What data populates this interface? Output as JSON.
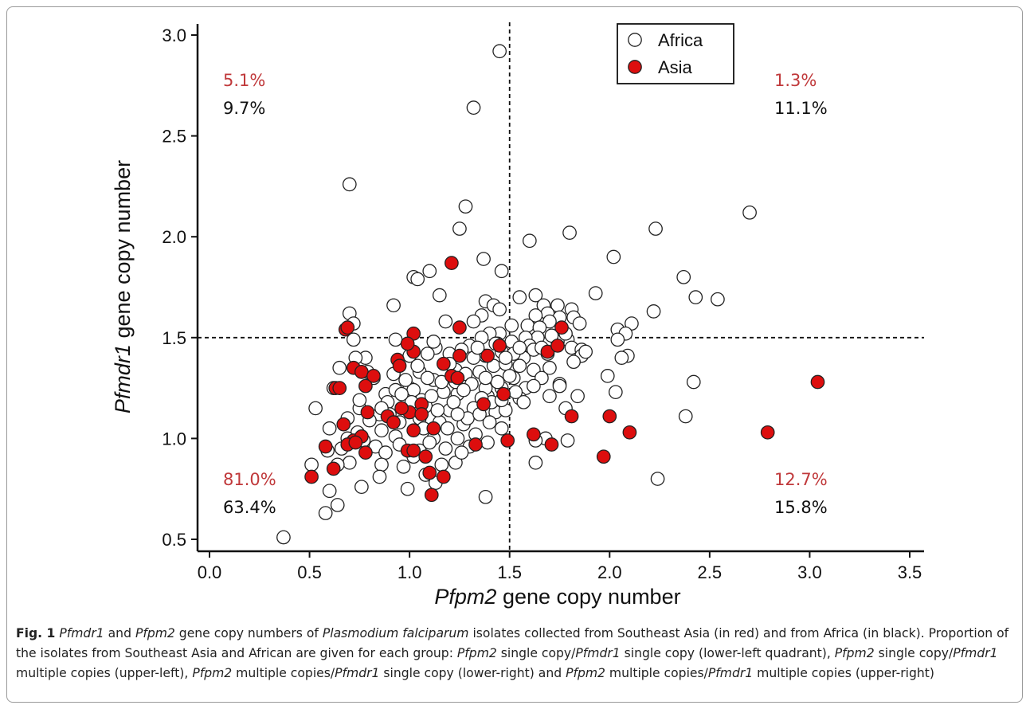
{
  "chart_data": {
    "type": "scatter",
    "xlabel": {
      "italic": "Pfpm2",
      "rest": " gene copy number"
    },
    "ylabel": {
      "italic": "Pfmdr1",
      "rest": " gene copy number"
    },
    "xlim": [
      0.0,
      3.5
    ],
    "ylim": [
      0.5,
      3.0
    ],
    "xticks": [
      "0.0",
      "0.5",
      "1.0",
      "1.5",
      "2.0",
      "2.5",
      "3.0",
      "3.5"
    ],
    "yticks": [
      "0.5",
      "1.0",
      "1.5",
      "2.0",
      "2.5",
      "3.0"
    ],
    "xtick_values": [
      0.0,
      0.5,
      1.0,
      1.5,
      2.0,
      2.5,
      3.0,
      3.5
    ],
    "ytick_values": [
      0.5,
      1.0,
      1.5,
      2.0,
      2.5,
      3.0
    ],
    "threshold_x": 1.5,
    "threshold_y": 1.5,
    "legend_position": "top-center",
    "series": [
      {
        "name": "Africa",
        "fill": "#ffffff",
        "points": [
          [
            1.45,
            2.92
          ],
          [
            1.32,
            2.64
          ],
          [
            0.7,
            2.26
          ],
          [
            1.28,
            2.15
          ],
          [
            2.7,
            2.12
          ],
          [
            1.25,
            2.04
          ],
          [
            2.23,
            2.04
          ],
          [
            1.8,
            2.02
          ],
          [
            1.6,
            1.98
          ],
          [
            2.02,
            1.9
          ],
          [
            1.37,
            1.89
          ],
          [
            1.46,
            1.83
          ],
          [
            1.1,
            1.83
          ],
          [
            1.02,
            1.8
          ],
          [
            1.04,
            1.79
          ],
          [
            2.37,
            1.8
          ],
          [
            1.93,
            1.72
          ],
          [
            1.15,
            1.71
          ],
          [
            1.63,
            1.71
          ],
          [
            2.43,
            1.7
          ],
          [
            2.54,
            1.69
          ],
          [
            1.55,
            1.7
          ],
          [
            1.38,
            1.68
          ],
          [
            1.67,
            1.66
          ],
          [
            1.74,
            1.66
          ],
          [
            0.92,
            1.66
          ],
          [
            1.42,
            1.66
          ],
          [
            1.45,
            1.64
          ],
          [
            1.81,
            1.64
          ],
          [
            2.22,
            1.63
          ],
          [
            0.7,
            1.62
          ],
          [
            1.69,
            1.62
          ],
          [
            1.63,
            1.61
          ],
          [
            1.36,
            1.61
          ],
          [
            1.75,
            1.6
          ],
          [
            1.82,
            1.6
          ],
          [
            1.18,
            1.58
          ],
          [
            1.32,
            1.58
          ],
          [
            2.11,
            1.57
          ],
          [
            0.72,
            1.57
          ],
          [
            1.85,
            1.57
          ],
          [
            1.7,
            1.58
          ],
          [
            1.59,
            1.56
          ],
          [
            1.65,
            1.55
          ],
          [
            2.04,
            1.54
          ],
          [
            2.08,
            1.52
          ],
          [
            1.45,
            1.52
          ],
          [
            1.4,
            1.52
          ],
          [
            1.36,
            1.5
          ],
          [
            1.64,
            1.5
          ],
          [
            1.58,
            1.5
          ],
          [
            0.72,
            1.49
          ],
          [
            0.93,
            1.49
          ],
          [
            1.79,
            1.49
          ],
          [
            2.04,
            1.49
          ],
          [
            1.51,
            1.48
          ],
          [
            1.74,
            1.48
          ],
          [
            1.44,
            1.47
          ],
          [
            1.6,
            1.46
          ],
          [
            1.3,
            1.46
          ],
          [
            1.13,
            1.45
          ],
          [
            1.81,
            1.45
          ],
          [
            1.86,
            1.44
          ],
          [
            1.62,
            1.44
          ],
          [
            1.46,
            1.43
          ],
          [
            1.69,
            1.42
          ],
          [
            1.2,
            1.42
          ],
          [
            1.09,
            1.42
          ],
          [
            1.38,
            1.41
          ],
          [
            1.86,
            1.41
          ],
          [
            2.09,
            1.41
          ],
          [
            2.06,
            1.4
          ],
          [
            1.32,
            1.4
          ],
          [
            1.57,
            1.4
          ],
          [
            0.65,
            1.35
          ],
          [
            0.79,
            1.33
          ],
          [
            0.92,
            1.32
          ],
          [
            1.55,
            1.36
          ],
          [
            1.7,
            1.35
          ],
          [
            1.42,
            1.36
          ],
          [
            1.62,
            1.34
          ],
          [
            1.23,
            1.34
          ],
          [
            1.05,
            1.33
          ],
          [
            1.99,
            1.31
          ],
          [
            1.82,
            1.38
          ],
          [
            1.26,
            1.3
          ],
          [
            1.52,
            1.3
          ],
          [
            1.66,
            1.3
          ],
          [
            1.75,
            1.27
          ],
          [
            1.0,
            1.25
          ],
          [
            0.88,
            1.22
          ],
          [
            0.93,
            1.24
          ],
          [
            1.02,
            1.24
          ],
          [
            1.46,
            1.25
          ],
          [
            1.58,
            1.25
          ],
          [
            2.03,
            1.23
          ],
          [
            1.24,
            1.22
          ],
          [
            1.39,
            1.21
          ],
          [
            1.84,
            1.21
          ],
          [
            0.89,
            1.18
          ],
          [
            1.08,
            1.16
          ],
          [
            1.2,
            1.14
          ],
          [
            1.32,
            1.15
          ],
          [
            1.43,
            1.13
          ],
          [
            1.55,
            1.2
          ],
          [
            1.75,
            1.26
          ],
          [
            0.53,
            1.15
          ],
          [
            0.75,
            1.15
          ],
          [
            0.85,
            1.12
          ],
          [
            1.05,
            1.1
          ],
          [
            1.15,
            1.08
          ],
          [
            1.27,
            1.07
          ],
          [
            1.4,
            1.08
          ],
          [
            1.48,
            1.14
          ],
          [
            1.68,
            1.0
          ],
          [
            2.38,
            1.11
          ],
          [
            0.6,
            1.05
          ],
          [
            0.74,
            1.03
          ],
          [
            0.86,
            1.04
          ],
          [
            0.93,
            1.01
          ],
          [
            1.12,
            1.0
          ],
          [
            1.24,
            1.0
          ],
          [
            1.39,
            0.98
          ],
          [
            1.63,
            0.99
          ],
          [
            1.79,
            0.99
          ],
          [
            0.66,
            0.95
          ],
          [
            0.83,
            0.96
          ],
          [
            0.88,
            0.93
          ],
          [
            1.05,
            0.94
          ],
          [
            1.18,
            0.95
          ],
          [
            1.3,
            0.96
          ],
          [
            0.59,
            0.94
          ],
          [
            0.7,
            0.88
          ],
          [
            0.86,
            0.87
          ],
          [
            0.97,
            0.86
          ],
          [
            1.16,
            0.87
          ],
          [
            1.23,
            0.88
          ],
          [
            1.63,
            0.88
          ],
          [
            0.51,
            0.87
          ],
          [
            0.64,
            0.87
          ],
          [
            0.85,
            0.81
          ],
          [
            0.99,
            0.75
          ],
          [
            1.08,
            0.82
          ],
          [
            1.13,
            0.78
          ],
          [
            0.6,
            0.74
          ],
          [
            0.76,
            0.76
          ],
          [
            1.38,
            0.71
          ],
          [
            0.64,
            0.67
          ],
          [
            0.58,
            0.63
          ],
          [
            2.24,
            0.8
          ],
          [
            0.37,
            0.51
          ],
          [
            2.42,
            1.28
          ],
          [
            1.48,
            1.37
          ],
          [
            1.52,
            1.42
          ],
          [
            1.35,
            1.33
          ],
          [
            1.28,
            1.32
          ],
          [
            1.31,
            1.27
          ],
          [
            1.38,
            1.25
          ],
          [
            1.44,
            1.28
          ],
          [
            1.5,
            1.31
          ],
          [
            1.41,
            1.18
          ],
          [
            1.22,
            1.18
          ],
          [
            1.17,
            1.23
          ],
          [
            1.06,
            1.19
          ],
          [
            1.12,
            1.29
          ],
          [
            0.98,
            1.29
          ],
          [
            1.01,
            1.14
          ],
          [
            0.95,
            1.08
          ],
          [
            0.9,
            1.12
          ],
          [
            1.07,
            1.05
          ],
          [
            1.19,
            1.05
          ],
          [
            1.29,
            1.1
          ],
          [
            1.35,
            1.12
          ],
          [
            1.57,
            1.18
          ],
          [
            1.62,
            1.26
          ],
          [
            1.7,
            1.21
          ],
          [
            1.78,
            1.15
          ],
          [
            1.46,
            1.05
          ],
          [
            1.33,
            1.02
          ],
          [
            1.1,
            0.98
          ],
          [
            0.8,
            1.09
          ],
          [
            0.77,
            0.99
          ],
          [
            0.69,
            1.0
          ],
          [
            0.95,
            0.97
          ],
          [
            1.02,
            0.91
          ],
          [
            1.26,
            0.93
          ],
          [
            1.43,
            1.47
          ],
          [
            1.34,
            1.45
          ],
          [
            1.26,
            1.44
          ],
          [
            1.48,
            1.4
          ],
          [
            1.55,
            1.45
          ],
          [
            1.66,
            1.45
          ],
          [
            0.78,
            1.4
          ],
          [
            0.73,
            1.4
          ],
          [
            0.82,
            1.3
          ],
          [
            1.2,
            1.37
          ],
          [
            1.09,
            1.3
          ],
          [
            1.16,
            1.28
          ],
          [
            1.88,
            1.43
          ],
          [
            1.71,
            1.51
          ],
          [
            1.78,
            1.52
          ],
          [
            1.51,
            1.56
          ],
          [
            1.12,
            1.48
          ],
          [
            1.0,
            1.41
          ],
          [
            1.04,
            1.36
          ],
          [
            1.23,
            1.28
          ],
          [
            1.27,
            1.24
          ],
          [
            1.36,
            1.2
          ],
          [
            1.46,
            1.19
          ],
          [
            1.53,
            1.23
          ],
          [
            1.11,
            1.21
          ],
          [
            1.14,
            1.14
          ],
          [
            1.24,
            1.12
          ],
          [
            1.01,
            1.18
          ],
          [
            0.96,
            1.22
          ],
          [
            0.86,
            1.15
          ],
          [
            0.75,
            1.19
          ],
          [
            0.69,
            1.1
          ],
          [
            0.62,
            1.25
          ],
          [
            1.38,
            1.3
          ]
        ]
      },
      {
        "name": "Asia",
        "fill": "#dd0e0e",
        "points": [
          [
            1.21,
            1.87
          ],
          [
            0.68,
            1.54
          ],
          [
            1.02,
            1.52
          ],
          [
            1.25,
            1.55
          ],
          [
            1.76,
            1.55
          ],
          [
            0.69,
            1.55
          ],
          [
            1.02,
            1.43
          ],
          [
            1.25,
            1.41
          ],
          [
            1.39,
            1.41
          ],
          [
            1.69,
            1.43
          ],
          [
            1.45,
            1.46
          ],
          [
            0.99,
            1.47
          ],
          [
            0.94,
            1.39
          ],
          [
            0.95,
            1.36
          ],
          [
            0.72,
            1.35
          ],
          [
            0.76,
            1.33
          ],
          [
            0.82,
            1.31
          ],
          [
            1.17,
            1.37
          ],
          [
            0.78,
            1.26
          ],
          [
            0.63,
            1.25
          ],
          [
            0.65,
            1.25
          ],
          [
            1.21,
            1.31
          ],
          [
            1.24,
            1.3
          ],
          [
            1.47,
            1.22
          ],
          [
            1.74,
            1.46
          ],
          [
            0.79,
            1.13
          ],
          [
            0.89,
            1.11
          ],
          [
            1.0,
            1.13
          ],
          [
            1.06,
            1.17
          ],
          [
            1.37,
            1.17
          ],
          [
            0.67,
            1.07
          ],
          [
            0.92,
            1.08
          ],
          [
            1.02,
            1.04
          ],
          [
            1.12,
            1.05
          ],
          [
            1.62,
            1.02
          ],
          [
            1.71,
            0.97
          ],
          [
            1.81,
            1.11
          ],
          [
            2.0,
            1.11
          ],
          [
            2.1,
            1.03
          ],
          [
            2.79,
            1.03
          ],
          [
            3.04,
            1.28
          ],
          [
            0.72,
            0.99
          ],
          [
            0.76,
            1.01
          ],
          [
            0.69,
            0.97
          ],
          [
            0.58,
            0.96
          ],
          [
            0.99,
            0.94
          ],
          [
            1.02,
            0.94
          ],
          [
            1.08,
            0.91
          ],
          [
            1.33,
            0.97
          ],
          [
            1.97,
            0.91
          ],
          [
            0.78,
            0.93
          ],
          [
            0.62,
            0.85
          ],
          [
            0.51,
            0.81
          ],
          [
            1.1,
            0.83
          ],
          [
            1.17,
            0.81
          ],
          [
            1.11,
            0.72
          ],
          [
            1.49,
            0.99
          ],
          [
            1.06,
            1.12
          ],
          [
            0.96,
            1.15
          ],
          [
            0.73,
            0.98
          ]
        ]
      }
    ],
    "annotations": [
      {
        "quadrant": "upper-left",
        "asia": "5.1%",
        "africa": "9.7%"
      },
      {
        "quadrant": "upper-right",
        "asia": "1.3%",
        "africa": "11.1%"
      },
      {
        "quadrant": "lower-left",
        "asia": "81.0%",
        "africa": "63.4%"
      },
      {
        "quadrant": "lower-right",
        "asia": "12.7%",
        "africa": "15.8%"
      }
    ],
    "annotation_colors": {
      "asia": "#c0393b",
      "africa": "#111111"
    }
  },
  "caption": {
    "fig": "Fig. 1",
    "parts": [
      {
        "t": "  "
      },
      {
        "t": "Pfmdr1",
        "i": true
      },
      {
        "t": " and "
      },
      {
        "t": "Pfpm2",
        "i": true
      },
      {
        "t": " gene copy numbers of "
      },
      {
        "t": "Plasmodium falciparum",
        "i": true
      },
      {
        "t": " isolates collected from Southeast Asia (in red) and from Africa (in black). Proportion of the isolates from Southeast Asia and African are given for each group: "
      },
      {
        "t": "Pfpm2",
        "i": true
      },
      {
        "t": " single copy/"
      },
      {
        "t": "Pfmdr1",
        "i": true
      },
      {
        "t": " single copy (lower-left quadrant), "
      },
      {
        "t": "Pfpm2",
        "i": true
      },
      {
        "t": " single copy/"
      },
      {
        "t": "Pfmdr1",
        "i": true
      },
      {
        "t": " multiple copies (upper-left), "
      },
      {
        "t": "Pfpm2",
        "i": true
      },
      {
        "t": " multiple copies/"
      },
      {
        "t": "Pfmdr1",
        "i": true
      },
      {
        "t": " single copy (lower-right) and "
      },
      {
        "t": "Pfpm2",
        "i": true
      },
      {
        "t": " multiple copies/"
      },
      {
        "t": "Pfmdr1",
        "i": true
      },
      {
        "t": " multiple copies (upper-right)"
      }
    ]
  }
}
